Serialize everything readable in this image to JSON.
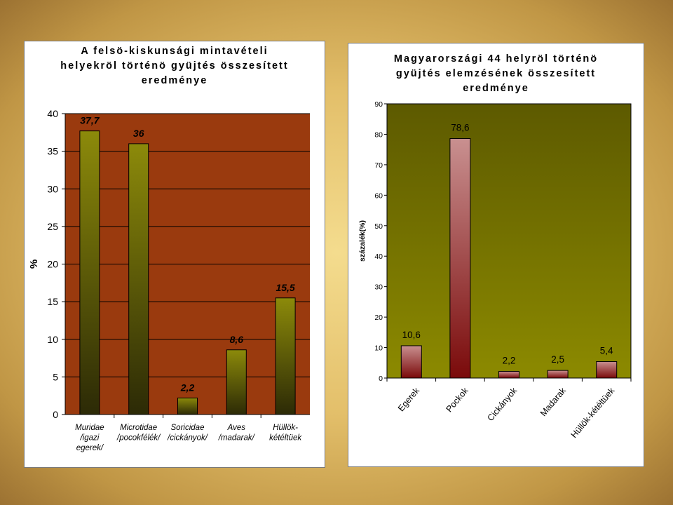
{
  "chart_data": [
    {
      "type": "bar",
      "title": "A felsö-kiskunsági mintavételi\nhelyekröl történö gyüjtés összesített\neredménye",
      "ylabel": "%",
      "xlabel": "",
      "ylim": [
        0,
        40
      ],
      "yticks": [
        0,
        5,
        10,
        15,
        20,
        25,
        30,
        35,
        40
      ],
      "categories": [
        "Muridae /igazi egerek/",
        "Microtidae /pocokfélék/",
        "Soricidae /cickányok/",
        "Aves /madarak/",
        "Hüllök-kétéltüek"
      ],
      "category_lines": [
        [
          "Muridae",
          "/igazi",
          "egerek/"
        ],
        [
          "Microtidae",
          "/pocokfélék/"
        ],
        [
          "Soricidae",
          "/cickányok/"
        ],
        [
          "Aves",
          "/madarak/"
        ],
        [
          "Hüllök-",
          "kétéltüek"
        ]
      ],
      "values": [
        37.7,
        36,
        2.2,
        8.6,
        15.5
      ],
      "value_labels": [
        "37,7",
        "36",
        "2,2",
        "8,6",
        "15,5"
      ],
      "grid": true,
      "colors": {
        "plot_bg": "#9a3a0e",
        "bar_top": "#8c8a0a",
        "bar_bottom": "#2c2a06"
      }
    },
    {
      "type": "bar",
      "title": "Magyarországi 44 helyröl történö\ngyüjtés elemzésének összesített\neredménye",
      "ylabel": "százalék(%)",
      "xlabel": "",
      "ylim": [
        0,
        90
      ],
      "yticks": [
        0,
        10,
        20,
        30,
        40,
        50,
        60,
        70,
        80,
        90
      ],
      "categories": [
        "Egerek",
        "Pockok",
        "Cickányok",
        "Madarak",
        "Hüllök-kétéltüek"
      ],
      "values": [
        10.6,
        78.6,
        2.2,
        2.5,
        5.4
      ],
      "value_labels": [
        "10,6",
        "78,6",
        "2,2",
        "2,5",
        "5,4"
      ],
      "grid": false,
      "colors": {
        "plot_bg_top": "#5d5a00",
        "plot_bg_bottom": "#8c8a00",
        "bar_top": "#c99090",
        "bar_bottom": "#7a0a0a"
      }
    }
  ]
}
